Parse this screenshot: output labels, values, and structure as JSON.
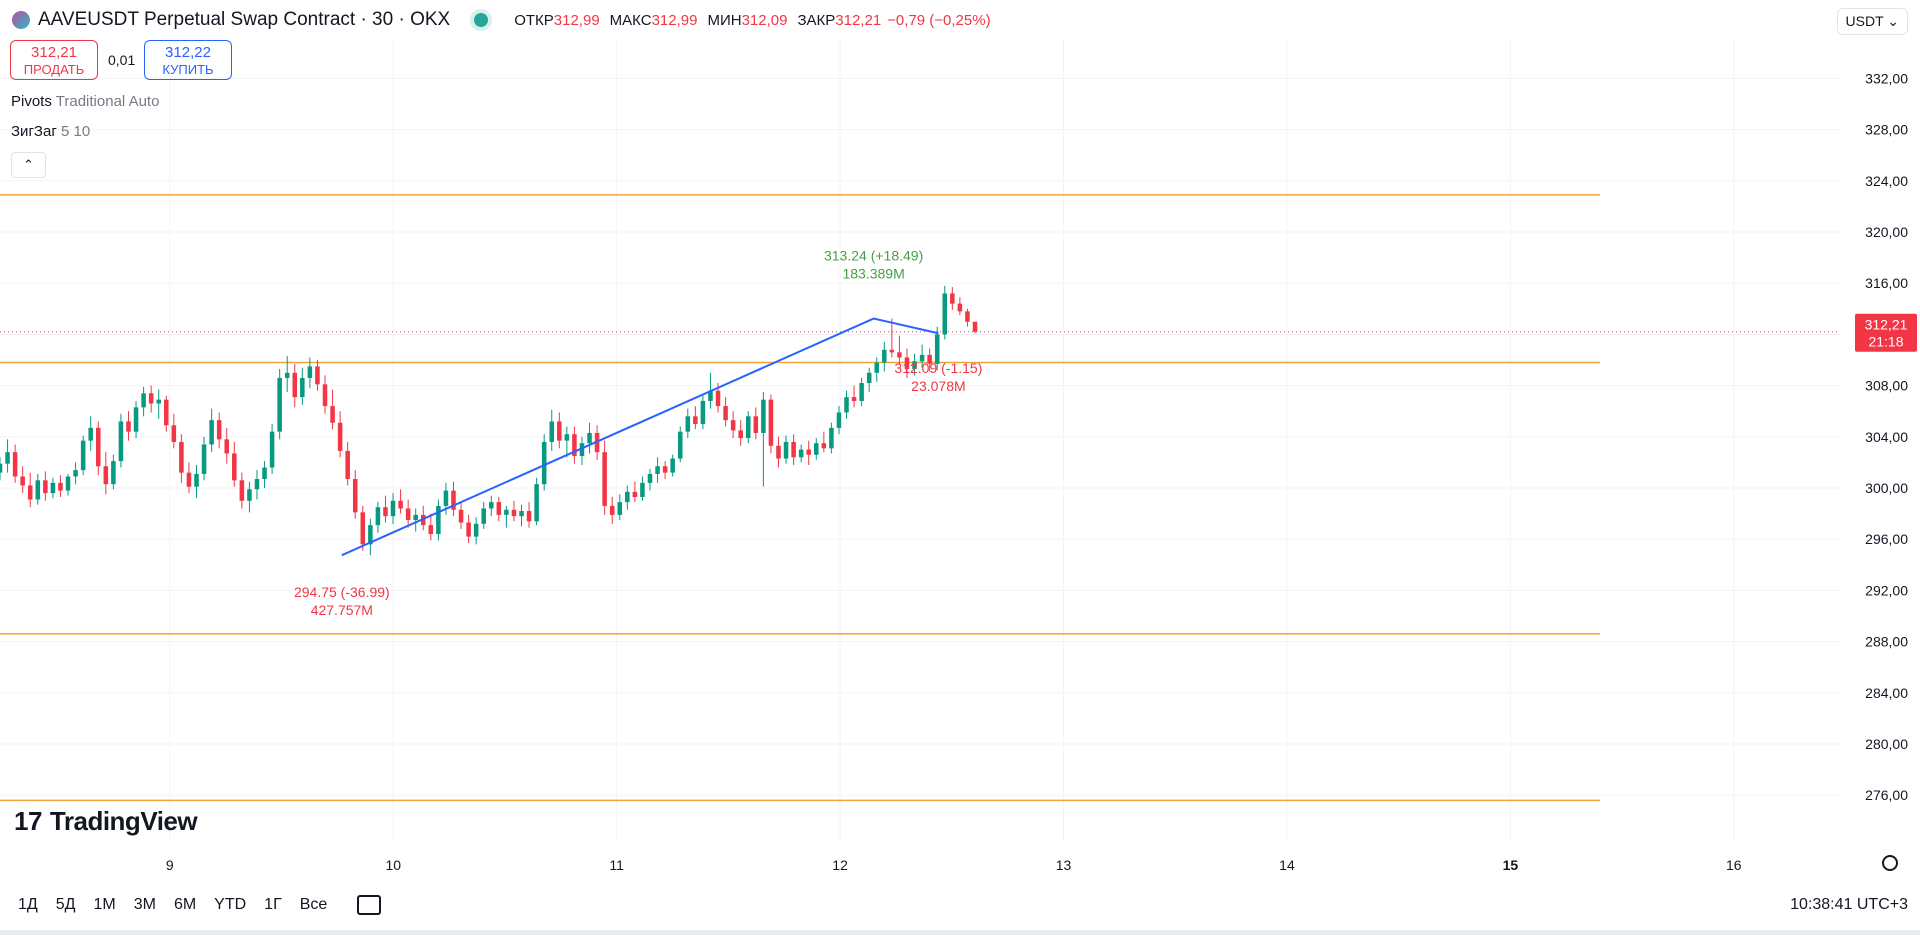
{
  "header": {
    "title": "AAVEUSDT Perpetual Swap Contract · 30 · OKX",
    "ohlc": [
      {
        "label": "ОТКР",
        "value": "312,99"
      },
      {
        "label": "МАКС",
        "value": "312,99"
      },
      {
        "label": "МИН",
        "value": "312,09"
      },
      {
        "label": "ЗАКР",
        "value": "312,21"
      }
    ],
    "change": "−0,79 (−0,25%)",
    "currency": "USDT"
  },
  "trade": {
    "sell_price": "312,21",
    "sell_label": "ПРОДАТЬ",
    "spread": "0,01",
    "buy_price": "312,22",
    "buy_label": "КУПИТЬ"
  },
  "indicators": {
    "pivots_name": "Pivots",
    "pivots_params": "Traditional Auto",
    "zigzag_name": "ЗигЗаг",
    "zigzag_params": "5 10"
  },
  "logo": "TradingView",
  "ranges": [
    "1Д",
    "5Д",
    "1М",
    "3М",
    "6М",
    "YTD",
    "1Г",
    "Все"
  ],
  "clock": "10:38:41 UTC+3",
  "chart_data": {
    "type": "candlestick",
    "price_scale": {
      "ylim": [
        272.5,
        335.0
      ],
      "ticks": [
        332,
        328,
        324,
        320,
        316,
        312,
        308,
        304,
        300,
        296,
        292,
        288,
        284,
        280,
        276
      ],
      "tick_labels": [
        "332,00",
        "328,00",
        "324,00",
        "320,00",
        "316,00",
        "312,00",
        "308,00",
        "304,00",
        "300,00",
        "296,00",
        "292,00",
        "288,00",
        "284,00",
        "280,00",
        "276,00"
      ]
    },
    "time_scale": {
      "xlim": [
        8.24,
        16.52
      ],
      "ticks": [
        9,
        10,
        11,
        12,
        13,
        14,
        15,
        16
      ],
      "tick_labels": [
        "9",
        "10",
        "11",
        "12",
        "13",
        "14",
        "15",
        "16"
      ]
    },
    "last_price": {
      "value": 312.21,
      "label": "312,21",
      "countdown": "21:18"
    },
    "pivot_levels": [
      322.9,
      309.8,
      288.6,
      275.6
    ],
    "zigzag": [
      {
        "x": 9.77,
        "y": 294.75,
        "label": "294.75 (-36.99)",
        "volume": "427.757M"
      },
      {
        "x": 12.15,
        "y": 313.24,
        "label": "313.24 (+18.49)",
        "volume": "183.389M"
      },
      {
        "x": 12.44,
        "y": 312.09,
        "label": "312.09 (-1.15)",
        "volume": "23.078M"
      }
    ],
    "candles": [
      [
        301.2,
        302.4,
        300.6,
        301.9
      ],
      [
        301.9,
        303.8,
        301.2,
        302.8
      ],
      [
        302.8,
        303.4,
        300.4,
        300.9
      ],
      [
        300.9,
        301.7,
        299.6,
        300.2
      ],
      [
        300.2,
        301.2,
        298.5,
        299.1
      ],
      [
        299.1,
        301.1,
        298.7,
        300.6
      ],
      [
        300.6,
        301.3,
        299.0,
        299.6
      ],
      [
        299.6,
        300.8,
        299.2,
        300.4
      ],
      [
        300.4,
        301.0,
        299.3,
        299.8
      ],
      [
        299.8,
        301.1,
        299.4,
        300.9
      ],
      [
        300.9,
        302.0,
        300.3,
        301.4
      ],
      [
        301.4,
        304.1,
        301.0,
        303.7
      ],
      [
        303.7,
        305.6,
        302.9,
        304.7
      ],
      [
        304.7,
        305.2,
        301.0,
        301.7
      ],
      [
        301.7,
        302.8,
        299.5,
        300.3
      ],
      [
        300.3,
        302.6,
        299.9,
        302.1
      ],
      [
        302.1,
        305.8,
        301.6,
        305.2
      ],
      [
        305.2,
        306.0,
        303.7,
        304.4
      ],
      [
        304.4,
        306.8,
        303.9,
        306.3
      ],
      [
        306.3,
        307.9,
        305.6,
        307.4
      ],
      [
        307.4,
        308.0,
        305.9,
        306.6
      ],
      [
        306.6,
        307.7,
        305.4,
        306.9
      ],
      [
        306.9,
        307.2,
        304.4,
        304.9
      ],
      [
        304.9,
        305.8,
        303.1,
        303.6
      ],
      [
        303.6,
        304.2,
        300.4,
        301.2
      ],
      [
        301.2,
        302.0,
        299.6,
        300.1
      ],
      [
        300.1,
        301.8,
        299.2,
        301.1
      ],
      [
        301.1,
        304.0,
        300.6,
        303.4
      ],
      [
        303.4,
        306.2,
        302.8,
        305.3
      ],
      [
        305.3,
        305.9,
        303.1,
        303.8
      ],
      [
        303.8,
        304.7,
        301.9,
        302.7
      ],
      [
        302.7,
        303.6,
        300.1,
        300.6
      ],
      [
        300.6,
        301.2,
        298.4,
        299.0
      ],
      [
        299.0,
        300.5,
        298.1,
        299.9
      ],
      [
        299.9,
        301.4,
        299.1,
        300.7
      ],
      [
        300.7,
        302.1,
        300.0,
        301.6
      ],
      [
        301.6,
        305.0,
        301.1,
        304.4
      ],
      [
        304.4,
        309.3,
        303.8,
        308.6
      ],
      [
        308.6,
        310.3,
        307.5,
        309.0
      ],
      [
        309.0,
        309.7,
        306.3,
        307.1
      ],
      [
        307.1,
        309.4,
        306.5,
        308.6
      ],
      [
        308.6,
        310.2,
        307.8,
        309.5
      ],
      [
        309.5,
        310.0,
        307.6,
        308.1
      ],
      [
        308.1,
        308.8,
        305.8,
        306.4
      ],
      [
        306.4,
        307.7,
        304.6,
        305.1
      ],
      [
        305.1,
        306.0,
        302.4,
        302.9
      ],
      [
        302.9,
        303.6,
        300.2,
        300.7
      ],
      [
        300.7,
        301.4,
        297.6,
        298.1
      ],
      [
        298.1,
        298.6,
        295.1,
        295.6
      ],
      [
        295.6,
        297.6,
        294.75,
        297.1
      ],
      [
        297.1,
        298.9,
        296.5,
        298.5
      ],
      [
        298.5,
        299.4,
        297.3,
        297.8
      ],
      [
        297.8,
        299.6,
        297.2,
        299.0
      ],
      [
        299.0,
        299.9,
        298.0,
        298.4
      ],
      [
        298.4,
        299.1,
        296.9,
        297.5
      ],
      [
        297.5,
        298.4,
        296.6,
        297.9
      ],
      [
        297.9,
        298.6,
        296.7,
        297.1
      ],
      [
        297.1,
        298.0,
        295.9,
        296.4
      ],
      [
        296.4,
        299.1,
        295.9,
        298.6
      ],
      [
        298.6,
        300.4,
        297.9,
        299.8
      ],
      [
        299.8,
        300.5,
        297.8,
        298.3
      ],
      [
        298.3,
        298.9,
        296.8,
        297.3
      ],
      [
        297.3,
        297.9,
        295.7,
        296.2
      ],
      [
        296.2,
        297.7,
        295.6,
        297.2
      ],
      [
        297.2,
        298.9,
        296.8,
        298.4
      ],
      [
        298.4,
        299.4,
        297.8,
        298.9
      ],
      [
        298.9,
        299.3,
        297.4,
        297.9
      ],
      [
        297.9,
        298.6,
        296.9,
        298.3
      ],
      [
        298.3,
        299.0,
        297.4,
        297.8
      ],
      [
        297.8,
        298.7,
        297.0,
        298.2
      ],
      [
        298.2,
        298.9,
        296.9,
        297.4
      ],
      [
        297.4,
        300.8,
        297.1,
        300.3
      ],
      [
        300.3,
        304.2,
        299.8,
        303.6
      ],
      [
        303.6,
        306.1,
        302.9,
        305.2
      ],
      [
        305.2,
        305.9,
        303.1,
        303.7
      ],
      [
        303.7,
        304.8,
        302.4,
        304.2
      ],
      [
        304.2,
        304.8,
        301.9,
        302.5
      ],
      [
        302.5,
        304.0,
        301.8,
        303.5
      ],
      [
        303.5,
        305.1,
        302.7,
        304.3
      ],
      [
        304.3,
        304.9,
        302.2,
        302.8
      ],
      [
        302.8,
        303.7,
        297.9,
        298.6
      ],
      [
        298.6,
        299.3,
        297.2,
        297.9
      ],
      [
        297.9,
        299.5,
        297.5,
        298.9
      ],
      [
        298.9,
        300.2,
        298.3,
        299.7
      ],
      [
        299.7,
        300.5,
        298.9,
        299.3
      ],
      [
        299.3,
        300.9,
        299.0,
        300.4
      ],
      [
        300.4,
        301.5,
        299.8,
        301.1
      ],
      [
        301.1,
        302.4,
        300.4,
        301.7
      ],
      [
        301.7,
        302.1,
        300.7,
        301.2
      ],
      [
        301.2,
        302.6,
        300.9,
        302.3
      ],
      [
        302.3,
        304.8,
        302.0,
        304.4
      ],
      [
        304.4,
        306.2,
        303.9,
        305.6
      ],
      [
        305.6,
        306.4,
        304.6,
        305.0
      ],
      [
        305.0,
        307.2,
        304.6,
        306.8
      ],
      [
        306.8,
        309.0,
        306.2,
        307.6
      ],
      [
        307.6,
        308.2,
        305.9,
        306.4
      ],
      [
        306.4,
        307.1,
        304.8,
        305.3
      ],
      [
        305.3,
        306.0,
        303.9,
        304.5
      ],
      [
        304.5,
        305.3,
        303.3,
        303.9
      ],
      [
        303.9,
        306.0,
        303.5,
        305.6
      ],
      [
        305.6,
        306.3,
        303.8,
        304.3
      ],
      [
        304.3,
        307.5,
        300.1,
        306.9
      ],
      [
        306.9,
        307.3,
        302.7,
        303.3
      ],
      [
        303.3,
        304.0,
        301.6,
        302.3
      ],
      [
        302.3,
        304.1,
        301.9,
        303.6
      ],
      [
        303.6,
        304.2,
        301.8,
        302.4
      ],
      [
        302.4,
        303.4,
        302.0,
        303.0
      ],
      [
        303.0,
        303.7,
        301.8,
        302.6
      ],
      [
        302.6,
        303.9,
        302.2,
        303.5
      ],
      [
        303.5,
        304.4,
        302.8,
        303.1
      ],
      [
        303.1,
        305.1,
        302.7,
        304.7
      ],
      [
        304.7,
        306.4,
        304.2,
        305.9
      ],
      [
        305.9,
        307.6,
        305.4,
        307.1
      ],
      [
        307.1,
        308.0,
        306.3,
        306.8
      ],
      [
        306.8,
        308.6,
        306.4,
        308.2
      ],
      [
        308.2,
        309.4,
        307.5,
        309.0
      ],
      [
        309.0,
        310.2,
        308.3,
        309.8
      ],
      [
        309.8,
        311.4,
        309.1,
        310.8
      ],
      [
        310.8,
        313.24,
        310.2,
        310.6
      ],
      [
        310.6,
        311.9,
        309.7,
        310.2
      ],
      [
        310.2,
        310.9,
        308.6,
        309.3
      ],
      [
        309.3,
        310.5,
        308.8,
        309.9
      ],
      [
        309.9,
        311.2,
        309.4,
        310.4
      ],
      [
        310.4,
        310.9,
        309.1,
        309.7
      ],
      [
        309.7,
        312.6,
        309.2,
        312.0
      ],
      [
        312.0,
        315.8,
        311.6,
        315.2
      ],
      [
        315.2,
        315.7,
        313.9,
        314.4
      ],
      [
        314.4,
        314.9,
        313.5,
        313.8
      ],
      [
        313.8,
        314.0,
        312.6,
        312.99
      ],
      [
        312.99,
        312.99,
        312.09,
        312.21
      ]
    ]
  }
}
